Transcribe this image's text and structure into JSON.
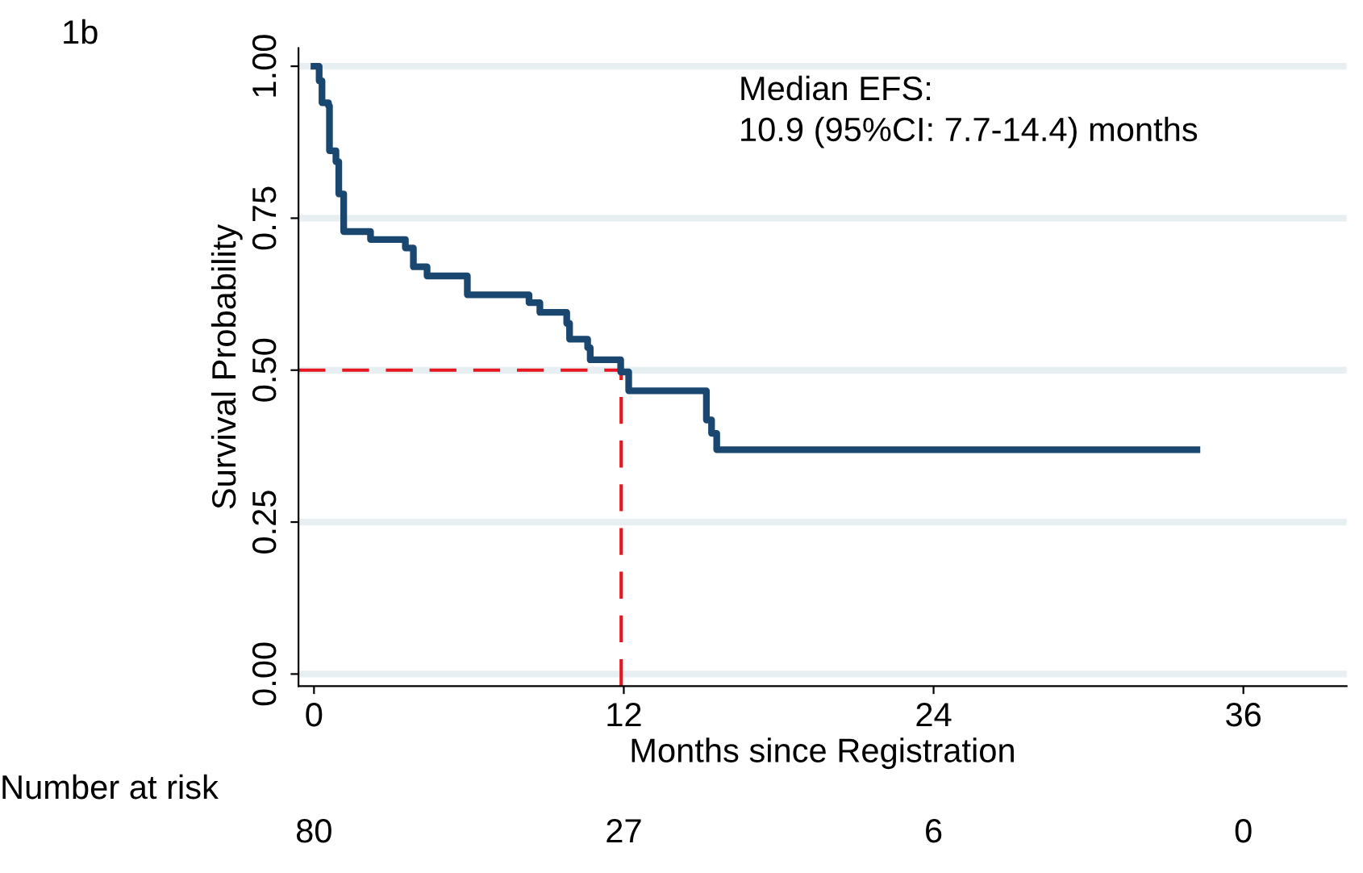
{
  "chart_data": {
    "type": "step",
    "xlabel": "Months since Registration",
    "ylabel": "Survival Probability",
    "xlim": [
      -0.6,
      40
    ],
    "ylim": [
      -0.02,
      1.03
    ],
    "xticks": [
      0,
      12,
      24,
      36
    ],
    "yticks": [
      {
        "value": 0,
        "label": "0.00"
      },
      {
        "value": 0.25,
        "label": "0.25"
      },
      {
        "value": 0.5,
        "label": "0.50"
      },
      {
        "value": 0.75,
        "label": "0.75"
      },
      {
        "value": 1,
        "label": "1.00"
      }
    ],
    "grid": "y",
    "legend": false,
    "annotations": [
      "1b",
      "Median EFS:\n10.9 (95%CI: 7.7-14.4) months",
      "Number at risk",
      "80",
      "27",
      "6",
      "0"
    ],
    "series": [
      {
        "color": "#1a476f",
        "x": [
          0,
          0.2,
          0.31,
          0.56,
          0.6,
          0.85,
          0.96,
          1.15,
          2.19,
          3.54,
          3.85,
          4.38,
          5.94,
          8.33,
          8.75,
          9.79,
          9.9,
          10.6,
          10.7,
          11.88,
          12.19,
          15.2,
          15.4,
          15.6,
          34.2
        ],
        "values": [
          1.0,
          0.976,
          0.94,
          0.935,
          0.861,
          0.843,
          0.79,
          0.728,
          0.715,
          0.701,
          0.67,
          0.655,
          0.624,
          0.611,
          0.595,
          0.577,
          0.551,
          0.537,
          0.517,
          0.497,
          0.466,
          0.418,
          0.396,
          0.369,
          0.369
        ]
      },
      {
        "type": "line",
        "line_style": "dashed",
        "color": "#e8171f",
        "x": [
          -0.6,
          11.9,
          11.9
        ],
        "values": [
          0.5,
          0.5,
          -0.02
        ]
      }
    ]
  }
}
